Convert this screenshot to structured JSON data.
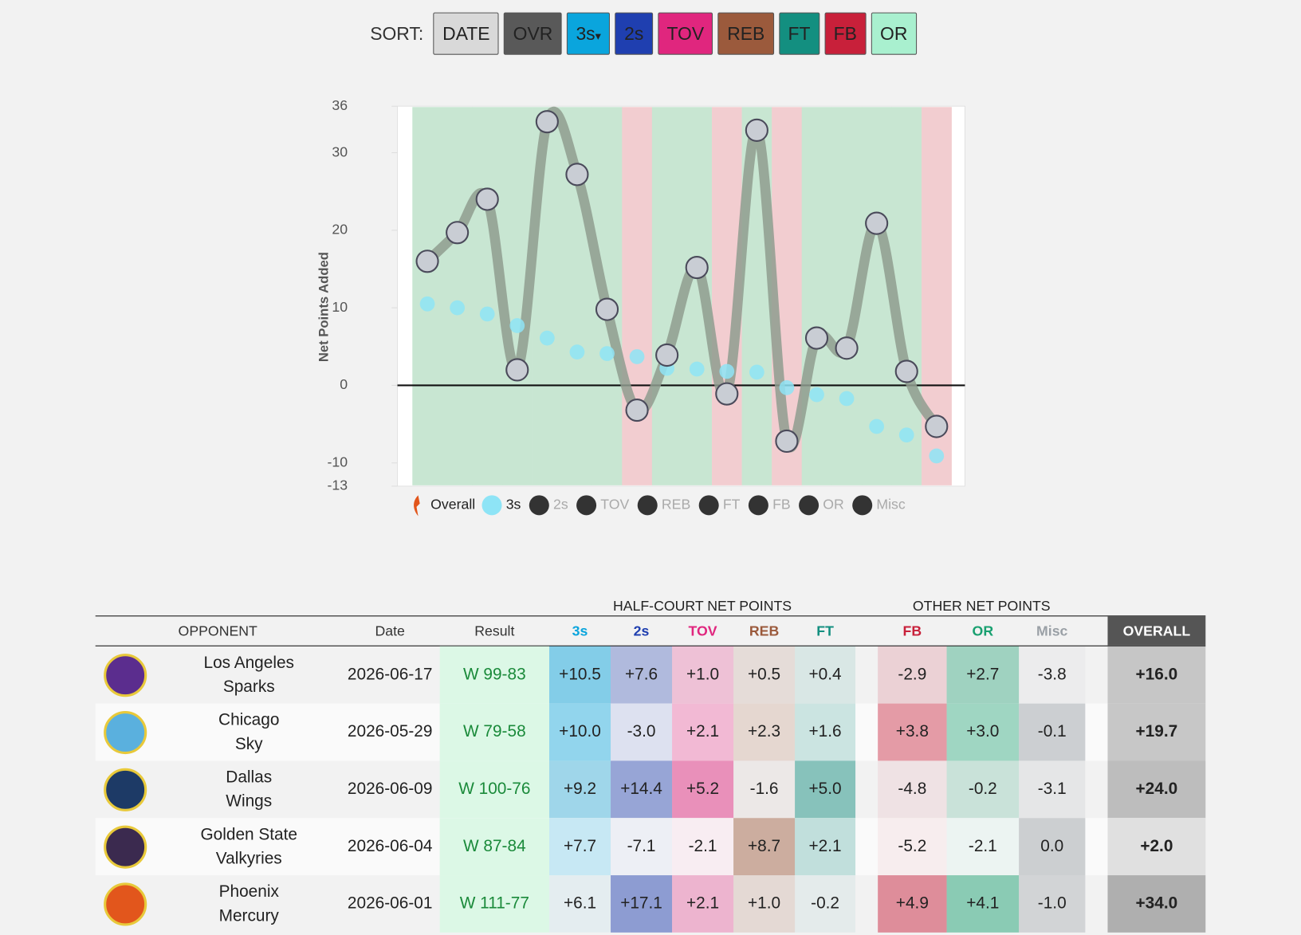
{
  "sort": {
    "label": "SORT:",
    "buttons": [
      {
        "text": "DATE",
        "color": "#d9d9d9"
      },
      {
        "text": "OVR",
        "color": "#595959"
      },
      {
        "text": "3s",
        "color": "#0aa5dd",
        "arrow": "▾"
      },
      {
        "text": "2s",
        "color": "#1f3fb0"
      },
      {
        "text": "TOV",
        "color": "#e0267e"
      },
      {
        "text": "REB",
        "color": "#9b5a3c"
      },
      {
        "text": "FT",
        "color": "#138f80"
      },
      {
        "text": "FB",
        "color": "#c8203a"
      },
      {
        "text": "OR",
        "color": "#a9f0cf"
      }
    ]
  },
  "chart_data": {
    "type": "line",
    "y_label": "Net Points Added",
    "ylim": [
      -13,
      36
    ],
    "yticks": [
      -13,
      -10,
      0,
      10,
      20,
      30,
      36
    ],
    "outcomes": [
      "W",
      "W",
      "W",
      "W",
      "W",
      "W",
      "W",
      "L",
      "W",
      "W",
      "L",
      "W",
      "L",
      "W",
      "W",
      "W",
      "W",
      "L"
    ],
    "win_color": "#c8e6d2",
    "loss_color": "#f2cdd0",
    "series": [
      {
        "name": "Overall",
        "color": "#8f9c8f",
        "values": [
          16.0,
          19.7,
          24.0,
          2.0,
          34.0,
          27.2,
          9.8,
          -3.2,
          3.9,
          15.2,
          -1.1,
          32.9,
          -7.2,
          6.1,
          4.8,
          20.9,
          1.8,
          -5.3
        ]
      },
      {
        "name": "3s",
        "color": "#8ee4f6",
        "values": [
          10.5,
          10.0,
          9.2,
          7.7,
          6.1,
          4.3,
          4.1,
          3.7,
          2.2,
          2.1,
          1.8,
          1.7,
          -0.3,
          -1.2,
          -1.7,
          -5.3,
          -6.4,
          -9.1
        ]
      }
    ],
    "legend_inactive": [
      "2s",
      "TOV",
      "REB",
      "FT",
      "FB",
      "OR",
      "Misc"
    ]
  },
  "table": {
    "group_headers": [
      "HALF-COURT NET POINTS",
      "OTHER NET POINTS"
    ],
    "columns": [
      "OPPONENT",
      "Date",
      "Result",
      "3s",
      "2s",
      "TOV",
      "REB",
      "FT",
      "FB",
      "OR",
      "Misc",
      "OVERALL"
    ],
    "column_colors": [
      "#333333",
      "#333333",
      "#333333",
      "#0aa5dd",
      "#1f3fb0",
      "#e0267e",
      "#9b5a3c",
      "#138f80",
      "#c8203a",
      "#19a070",
      "#9aa0a6",
      "#ffffff"
    ],
    "rows": [
      {
        "logo_color": "#5b2d8e",
        "city": "Los Angeles",
        "team": "Sparks",
        "date": "2026-06-17",
        "result": "W 99-83",
        "values": [
          "+10.5",
          "+7.6",
          "+1.0",
          "+0.5",
          "+0.4",
          "-2.9",
          "+2.7",
          "-3.8",
          "+16.0"
        ]
      },
      {
        "logo_color": "#5ab0de",
        "city": "Chicago",
        "team": "Sky",
        "date": "2026-05-29",
        "result": "W 79-58",
        "values": [
          "+10.0",
          "-3.0",
          "+2.1",
          "+2.3",
          "+1.6",
          "+3.8",
          "+3.0",
          "-0.1",
          "+19.7"
        ]
      },
      {
        "logo_color": "#1d3a66",
        "city": "Dallas",
        "team": "Wings",
        "date": "2026-06-09",
        "result": "W 100-76",
        "values": [
          "+9.2",
          "+14.4",
          "+5.2",
          "-1.6",
          "+5.0",
          "-4.8",
          "-0.2",
          "-3.1",
          "+24.0"
        ]
      },
      {
        "logo_color": "#3b2a4f",
        "city": "Golden State",
        "team": "Valkyries",
        "date": "2026-06-04",
        "result": "W 87-84",
        "values": [
          "+7.7",
          "-7.1",
          "-2.1",
          "+8.7",
          "+2.1",
          "-5.2",
          "-2.1",
          "0.0",
          "+2.0"
        ]
      },
      {
        "logo_color": "#e2561c",
        "city": "Phoenix",
        "team": "Mercury",
        "date": "2026-06-01",
        "result": "W 111-77",
        "values": [
          "+6.1",
          "+17.1",
          "+2.1",
          "+1.0",
          "-0.2",
          "+4.9",
          "+4.1",
          "-1.0",
          "+34.0"
        ]
      }
    ]
  }
}
